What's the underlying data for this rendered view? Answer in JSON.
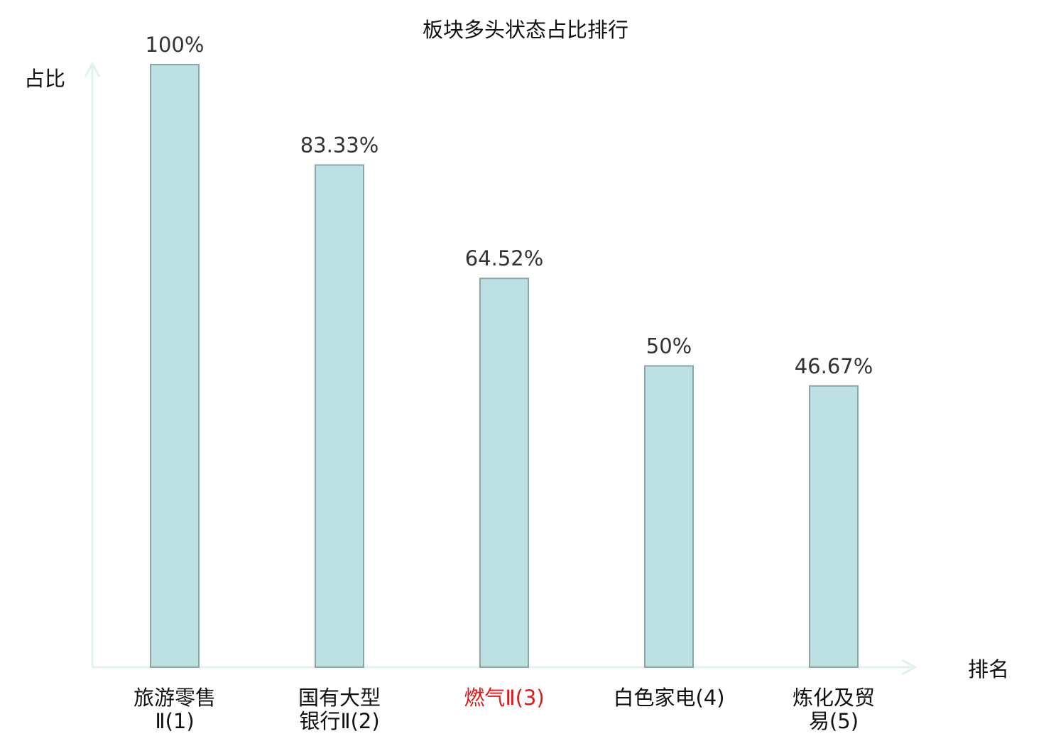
{
  "chart_data": {
    "type": "bar",
    "title": "板块多头状态占比排行",
    "ylabel": "占比",
    "xlabel": "排名",
    "ylim": [
      0,
      100
    ],
    "grid": false,
    "legend": "none",
    "categories": [
      {
        "lines": [
          "旅游零售",
          "Ⅱ(1)"
        ],
        "highlight": false
      },
      {
        "lines": [
          "国有大型",
          "银行Ⅱ(2)"
        ],
        "highlight": false
      },
      {
        "lines": [
          "燃气Ⅱ(3)"
        ],
        "highlight": true
      },
      {
        "lines": [
          "白色家电(4)"
        ],
        "highlight": false
      },
      {
        "lines": [
          "炼化及贸",
          "易(5)"
        ],
        "highlight": false
      }
    ],
    "values": [
      100,
      83.33,
      64.52,
      50,
      46.67
    ],
    "value_labels": [
      "100%",
      "83.33%",
      "64.52%",
      "50%",
      "46.67%"
    ]
  },
  "colors": {
    "bar_fill": "#bde0e2",
    "bar_stroke": "#8aa6a8",
    "axis": "#e0f2ef",
    "text": "#333333",
    "title": "#111111",
    "highlight_text": "#e01a1a"
  }
}
